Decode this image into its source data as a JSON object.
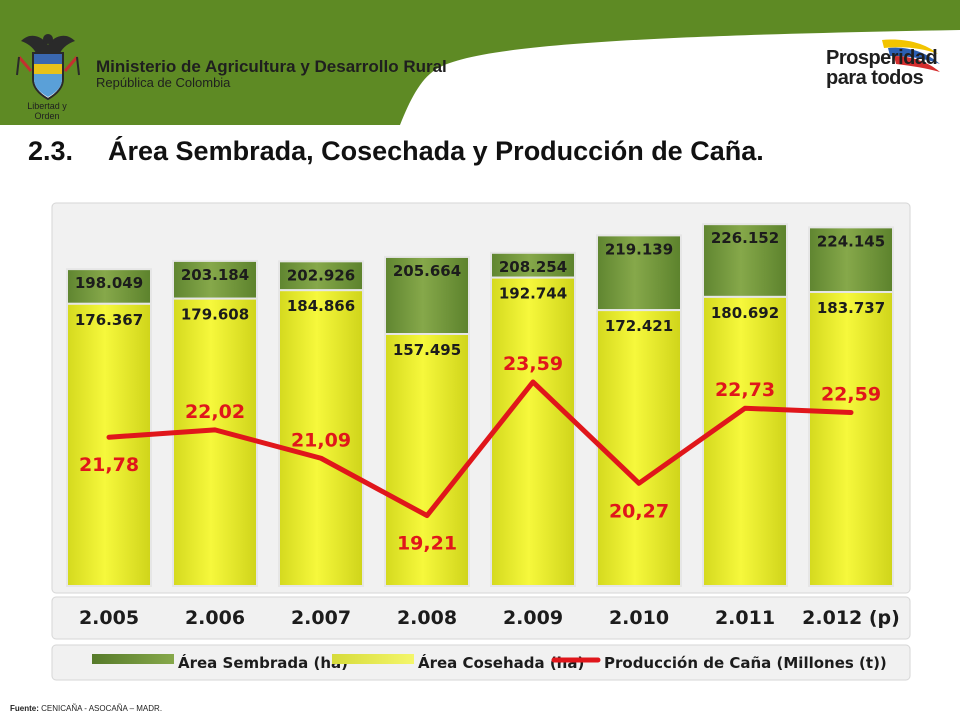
{
  "header": {
    "ministry_name": "Ministerio de Agricultura y Desarrollo Rural",
    "ministry_sub": "República de Colombia",
    "motto": "Libertad y Orden",
    "brand_line1": "Prosperidad",
    "brand_line2": "para todos",
    "bar_color": "#5e8a24"
  },
  "slide": {
    "number": "2.3.",
    "title": "Área Sembrada, Cosechada y Producción de Caña."
  },
  "chart_data": {
    "type": "bar",
    "categories": [
      "2.005",
      "2.006",
      "2.007",
      "2.008",
      "2.009",
      "2.010",
      "2.011",
      "2.012 (p)"
    ],
    "series": [
      {
        "name": "Área Sembrada (ha)",
        "type": "bar",
        "color": "#779a3c",
        "values": [
          198049,
          203184,
          202926,
          205664,
          208254,
          219139,
          226152,
          224145
        ],
        "labels": [
          "198.049",
          "203.184",
          "202.926",
          "205.664",
          "208.254",
          "219.139",
          "226.152",
          "224.145"
        ]
      },
      {
        "name": "Área Cosehada (ha)",
        "type": "bar",
        "color": "#eaee2a",
        "values": [
          176367,
          179608,
          184866,
          157495,
          192744,
          172421,
          180692,
          183737
        ],
        "labels": [
          "176.367",
          "179.608",
          "184.866",
          "157.495",
          "192.744",
          "172.421",
          "180.692",
          "183.737"
        ]
      },
      {
        "name": "Producción de Caña (Millones (t))",
        "type": "line",
        "color": "#e0161b",
        "values": [
          21.78,
          22.02,
          21.09,
          19.21,
          23.59,
          20.27,
          22.73,
          22.59
        ],
        "labels": [
          "21,78",
          "22,02",
          "21,09",
          "19,21",
          "23,59",
          "20,27",
          "22,73",
          "22,59"
        ]
      }
    ],
    "legend_position": "bottom"
  },
  "footer": {
    "label": "Fuente:",
    "text": "CENICAÑA - ASOCAÑA – MADR."
  }
}
